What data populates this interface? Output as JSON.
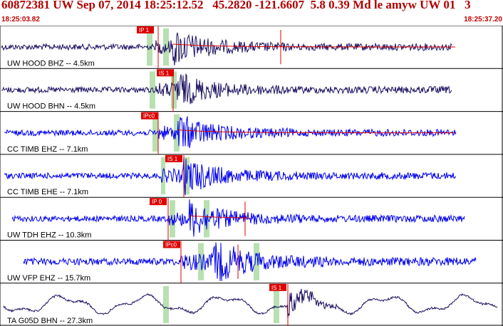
{
  "header": {
    "title": "60872381 UW Sep 07, 2014 18:25:12.52   45.2820 -121.6607  5.8 0.39 Md le amyw UW 01   3",
    "start_time": "18:25:03.82",
    "end_time": "18:25:37.20"
  },
  "colors": {
    "title": "#b00000",
    "blue": "#0000ee",
    "navy": "#1a1060",
    "pick": "#dd0000",
    "band": "#b8e0b0"
  },
  "traces": [
    {
      "label": "UW HOOD BHZ -- 4.5km",
      "color": "navy",
      "pick_label": "IP 1",
      "amp": 1.0
    },
    {
      "label": "UW HOOD BHN -- 4.5km",
      "color": "navy",
      "pick_label": "IS 1",
      "amp": 1.0
    },
    {
      "label": "CC TIMB EHZ -- 7.1km",
      "color": "blue",
      "pick_label": "IPc0",
      "amp": 1.0
    },
    {
      "label": "CC TIMB EHE -- 7.1km",
      "color": "blue",
      "pick_label": "IS 1",
      "amp": 1.0
    },
    {
      "label": "UW TDH EHZ -- 10.3km",
      "color": "blue",
      "pick_label": "IP 0",
      "amp": 1.0
    },
    {
      "label": "UW VFP EHZ -- 15.7km",
      "color": "blue",
      "pick_label": "IPc0",
      "amp": 1.2
    },
    {
      "label": "TA G05D BHN -- 27.3km",
      "color": "navy",
      "pick_label": "IS 1",
      "amp": 1.0
    }
  ]
}
